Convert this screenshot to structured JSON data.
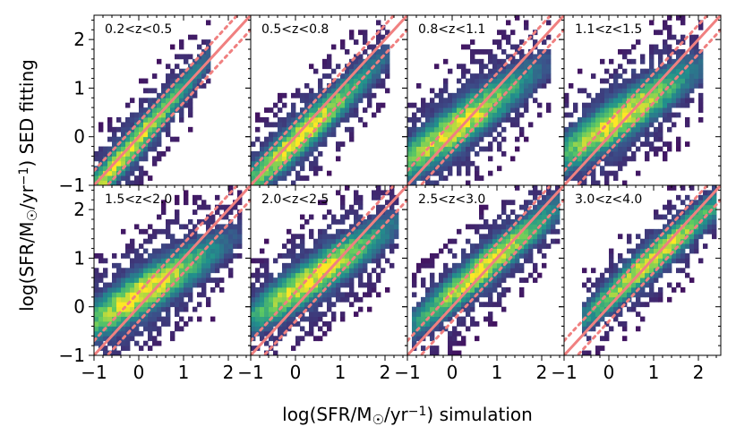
{
  "chart_data": {
    "type": "heatmap",
    "layout": "2x4 grid of small multiples with shared axes",
    "xlabel_parts": {
      "prefix": "log(SFR/M",
      "sub": "☉",
      "mid": "/yr",
      "sup": "−1",
      "suffix": ") simulation"
    },
    "ylabel_parts": {
      "prefix": "log(SFR/M",
      "sub": "☉",
      "mid": "/yr",
      "sup": "−1",
      "suffix": ") SED fitting"
    },
    "xlim": [
      -1,
      2.5
    ],
    "ylim": [
      -1,
      2.5
    ],
    "xticks": [
      -1,
      0,
      1,
      2
    ],
    "yticks": [
      -1,
      0,
      1,
      2
    ],
    "xtick_labels": [
      "−1",
      "0",
      "1",
      "2"
    ],
    "ytick_labels": [
      "−1",
      "0",
      "1",
      "2"
    ],
    "colormap": "viridis",
    "colormap_stops": [
      "#440154",
      "#3b528b",
      "#21918c",
      "#5ec962",
      "#fde725"
    ],
    "line_color": "#f08080",
    "reference_lines": [
      {
        "name": "one-to-one",
        "style": "solid",
        "offset": 0
      },
      {
        "name": "plus-0.3-dex",
        "style": "dotted",
        "offset": 0.3
      },
      {
        "name": "minus-0.3-dex",
        "style": "dotted",
        "offset": -0.3
      }
    ],
    "panels": [
      {
        "title": "0.2<z<0.5",
        "x_range": [
          -1.0,
          1.6
        ],
        "density_center": [
          -0.3,
          -0.35
        ],
        "slope": 1.05,
        "spread": 0.22
      },
      {
        "title": "0.5<z<0.8",
        "x_range": [
          -1.0,
          2.1
        ],
        "density_center": [
          0.1,
          0.0
        ],
        "slope": 0.85,
        "spread": 0.25
      },
      {
        "title": "0.8<z<1.1",
        "x_range": [
          -1.0,
          2.2
        ],
        "density_center": [
          0.1,
          0.2
        ],
        "slope": 0.65,
        "spread": 0.3
      },
      {
        "title": "1.1<z<1.5",
        "x_range": [
          -1.0,
          2.1
        ],
        "density_center": [
          0.2,
          0.35
        ],
        "slope": 0.6,
        "spread": 0.3
      },
      {
        "title": "1.5<z<2.0",
        "x_range": [
          -1.0,
          2.3
        ],
        "density_center": [
          0.1,
          0.3
        ],
        "slope": 0.55,
        "spread": 0.3
      },
      {
        "title": "2.0<z<2.5",
        "x_range": [
          -1.0,
          2.3
        ],
        "density_center": [
          0.4,
          0.6
        ],
        "slope": 0.6,
        "spread": 0.28
      },
      {
        "title": "2.5<z<3.0",
        "x_range": [
          -0.9,
          2.4
        ],
        "density_center": [
          0.7,
          0.8
        ],
        "slope": 0.75,
        "spread": 0.25
      },
      {
        "title": "3.0<z<4.0",
        "x_range": [
          -0.6,
          2.4
        ],
        "density_center": [
          1.0,
          1.0
        ],
        "slope": 0.8,
        "spread": 0.22
      }
    ]
  }
}
